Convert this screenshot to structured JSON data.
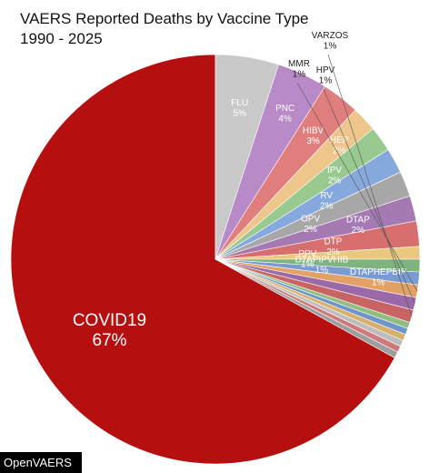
{
  "chart_data": {
    "type": "pie",
    "title": "VAERS Reported Deaths by Vaccine Type",
    "subtitle": "1990 - 2025",
    "slices": [
      {
        "label": "COVID19",
        "pct_label": "67%",
        "value": 67,
        "color": "#b5100f"
      },
      {
        "label": "FLU",
        "pct_label": "5%",
        "value": 5,
        "color": "#c9c9c9"
      },
      {
        "label": "PNC",
        "pct_label": "4%",
        "value": 4,
        "color": "#b98ac8"
      },
      {
        "label": "HIBV",
        "pct_label": "3%",
        "value": 3,
        "color": "#e07e7e"
      },
      {
        "label": "HEP",
        "pct_label": "2%",
        "value": 2,
        "color": "#eec58a"
      },
      {
        "label": "IPV",
        "pct_label": "2%",
        "value": 2,
        "color": "#98c98f"
      },
      {
        "label": "RV",
        "pct_label": "2%",
        "value": 2,
        "color": "#86a9dd"
      },
      {
        "label": "OPV",
        "pct_label": "2%",
        "value": 2,
        "color": "#a7a7a7"
      },
      {
        "label": "DTAP",
        "pct_label": "2%",
        "value": 2,
        "color": "#a57ab3"
      },
      {
        "label": "DTP",
        "pct_label": "2%",
        "value": 2,
        "color": "#d86f6f"
      },
      {
        "label": "PPV",
        "pct_label": "1%",
        "value": 1,
        "color": "#ecc87f"
      },
      {
        "label": "DTAPIPVHIB",
        "pct_label": "1%",
        "value": 1,
        "color": "#7fb37f"
      },
      {
        "label": "DTAPHEPBIP",
        "pct_label": "1%",
        "value": 1,
        "color": "#7a9bd0"
      },
      {
        "label": "MMR",
        "pct_label": "1%",
        "value": 1,
        "color": "#e2a266"
      },
      {
        "label": "HPV",
        "pct_label": "1%",
        "value": 1,
        "color": "#9a6aa8"
      },
      {
        "label": "VARZOS",
        "pct_label": "1%",
        "value": 1,
        "color": "#c96464"
      },
      {
        "label": "",
        "pct_label": "",
        "value": 0.5,
        "color": "#8fbe80"
      },
      {
        "label": "",
        "pct_label": "",
        "value": 0.5,
        "color": "#6f96cc"
      },
      {
        "label": "",
        "pct_label": "",
        "value": 0.5,
        "color": "#d9b06a"
      },
      {
        "label": "",
        "pct_label": "",
        "value": 0.5,
        "color": "#bdbdbd"
      },
      {
        "label": "",
        "pct_label": "",
        "value": 0.5,
        "color": "#cf7a7a"
      },
      {
        "label": "",
        "pct_label": "",
        "value": 0.5,
        "color": "#9e9e9e"
      }
    ]
  },
  "footer": {
    "source": "OpenVAERS"
  }
}
